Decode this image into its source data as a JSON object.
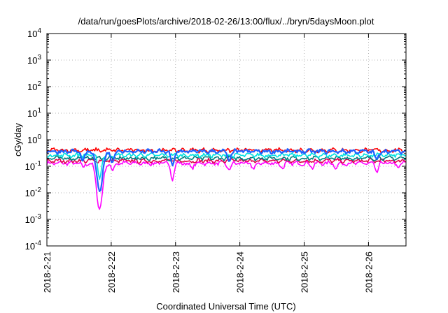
{
  "chart_data": {
    "type": "line",
    "title": "/data/run/goesPlots/archive/2018-02-26/13:00/flux/../bryn/5daysMoon.plot",
    "xlabel": "Coordinated Universal Time (UTC)",
    "ylabel": "cGy/day",
    "x_range": [
      "2018-02-21",
      "2018-02-26T14:00"
    ],
    "x_ticks": [
      "2018-2-21",
      "2018-2-22",
      "2018-2-23",
      "2018-2-24",
      "2018-2-25",
      "2018-2-26"
    ],
    "y_scale": "log",
    "ylim": [
      0.0001,
      10000
    ],
    "y_ticks": [
      {
        "mantissa": "10",
        "exponent": "-4"
      },
      {
        "mantissa": "10",
        "exponent": "-3"
      },
      {
        "mantissa": "10",
        "exponent": "-2"
      },
      {
        "mantissa": "10",
        "exponent": "-1"
      },
      {
        "mantissa": "10",
        "exponent": "0"
      },
      {
        "mantissa": "10",
        "exponent": "1"
      },
      {
        "mantissa": "10",
        "exponent": "2"
      },
      {
        "mantissa": "10",
        "exponent": "3"
      },
      {
        "mantissa": "10",
        "exponent": "4"
      }
    ],
    "grid": true,
    "legend": "none",
    "series": [
      {
        "color": "#ff00ff",
        "base": 0.13,
        "dips": [
          {
            "x": "2018-02-21T13:30",
            "y": 0.09
          },
          {
            "x": "2018-02-21T19:40",
            "y": 0.0025
          },
          {
            "x": "2018-02-22T00:30",
            "y": 0.07
          },
          {
            "x": "2018-02-22T22:50",
            "y": 0.035
          },
          {
            "x": "2018-02-23T06:00",
            "y": 0.08
          },
          {
            "x": "2018-02-23T20:00",
            "y": 0.07
          },
          {
            "x": "2018-02-24T05:00",
            "y": 0.075
          },
          {
            "x": "2018-02-24T16:00",
            "y": 0.085
          },
          {
            "x": "2018-02-25T03:00",
            "y": 0.09
          },
          {
            "x": "2018-02-25T12:00",
            "y": 0.09
          },
          {
            "x": "2018-02-26T03:00",
            "y": 0.06
          },
          {
            "x": "2018-02-26T11:00",
            "y": 0.09
          }
        ]
      },
      {
        "color": "#e0004a",
        "base": 0.16,
        "dips": []
      },
      {
        "color": "#008080",
        "base": 0.2,
        "dips": []
      },
      {
        "color": "#00e0e0",
        "base": 0.26,
        "dips": [
          {
            "x": "2018-02-21T19:40",
            "y": 0.03
          }
        ]
      },
      {
        "color": "#ff0000",
        "base": 0.4,
        "dips": []
      },
      {
        "color": "#2060ff",
        "base": 0.36,
        "dips": [
          {
            "x": "2018-02-21T13:30",
            "y": 0.14
          },
          {
            "x": "2018-02-21T19:40",
            "y": 0.012
          },
          {
            "x": "2018-02-22T00:30",
            "y": 0.15
          },
          {
            "x": "2018-02-22T22:50",
            "y": 0.1
          },
          {
            "x": "2018-02-23T20:00",
            "y": 0.15
          },
          {
            "x": "2018-02-26T03:00",
            "y": 0.17
          }
        ]
      }
    ]
  }
}
